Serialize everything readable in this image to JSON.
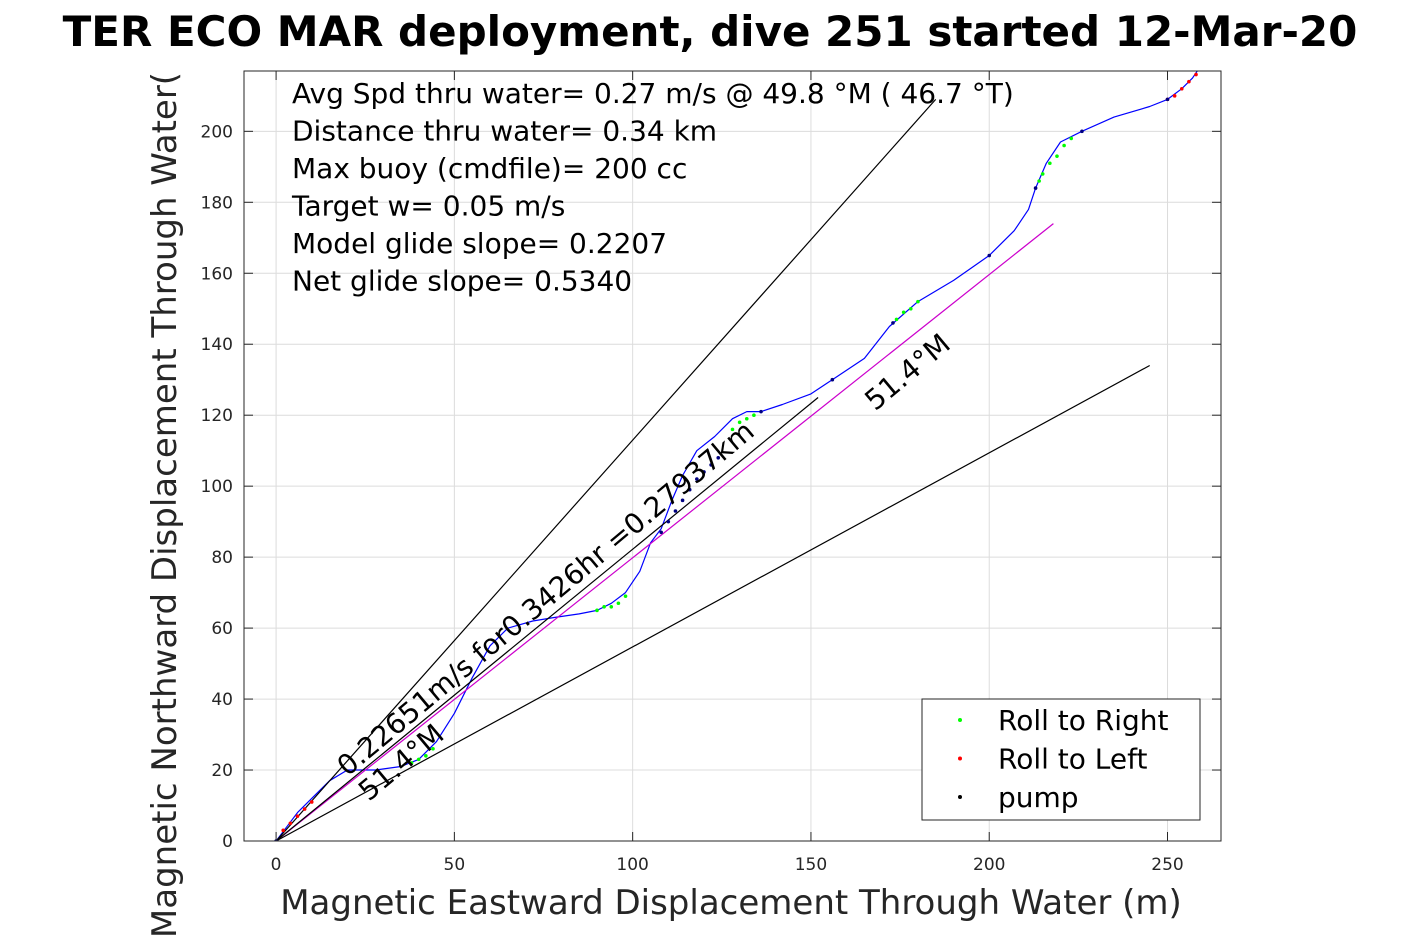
{
  "chart_data": {
    "type": "line",
    "title": "TER ECO MAR deployment, dive 251 started 12-Mar-20",
    "xlabel": "Magnetic Eastward Displacement Through Water (m)",
    "ylabel": "Magnetic Northward Displacement Through Water(",
    "xlim": [
      -9,
      265
    ],
    "ylim": [
      0,
      217
    ],
    "xticks": [
      0,
      50,
      100,
      150,
      200,
      250
    ],
    "yticks": [
      0,
      20,
      40,
      60,
      80,
      100,
      120,
      140,
      160,
      180,
      200
    ],
    "grid": true,
    "legend": {
      "placement": "bottom-right",
      "entries": [
        {
          "label": "Roll to Right",
          "color": "#00ff00"
        },
        {
          "label": "Roll to Left",
          "color": "#ff0000"
        },
        {
          "label": "pump",
          "color": "#000000"
        }
      ]
    },
    "info_lines": [
      "Avg Spd thru water=  0.27 m/s @  49.8 °M ( 46.7 °T)",
      "Distance thru water=  0.34 km",
      "Max buoy (cmdfile)= 200 cc",
      "Target w= 0.05 m/s",
      "Model glide slope= 0.2207",
      "Net glide slope= 0.5340"
    ],
    "annotations": [
      {
        "text": "0.22651m/s for0.3426hr =0.27937km",
        "x": 20,
        "y": 18,
        "angle_deg": -40
      },
      {
        "text": "51.4°M",
        "x": 26,
        "y": 11,
        "angle_deg": -40
      },
      {
        "text": "51.4°M",
        "x": 168,
        "y": 121,
        "angle_deg": -40
      }
    ],
    "series": [
      {
        "name": "track",
        "color": "#0000ff",
        "x": [
          0,
          3,
          6,
          10,
          15,
          20,
          28,
          35,
          40,
          45,
          50,
          55,
          60,
          65,
          72,
          78,
          85,
          90,
          94,
          98,
          102,
          105,
          108,
          111,
          114,
          118,
          123,
          128,
          132,
          136,
          142,
          150,
          156,
          165,
          172,
          180,
          190,
          200,
          207,
          211,
          213,
          216,
          220,
          226,
          235,
          245,
          250,
          254,
          257,
          259
        ],
        "y": [
          0,
          4,
          8,
          12,
          17,
          20,
          20,
          21,
          23,
          28,
          36,
          46,
          55,
          60,
          62,
          63,
          64,
          65,
          67,
          70,
          76,
          84,
          88,
          96,
          103,
          110,
          114,
          119,
          121,
          121,
          123,
          126,
          130,
          136,
          145,
          152,
          158,
          165,
          172,
          178,
          184,
          191,
          197,
          200,
          204,
          207,
          209,
          212,
          215,
          218
        ]
      },
      {
        "name": "glide",
        "color": "#cc00cc",
        "x": [
          0,
          218
        ],
        "y": [
          0,
          174
        ]
      },
      {
        "name": "fan-upper",
        "color": "#000000",
        "x": [
          0,
          185
        ],
        "y": [
          0,
          209
        ]
      },
      {
        "name": "fan-lower",
        "color": "#000000",
        "x": [
          0,
          245
        ],
        "y": [
          0,
          134
        ]
      },
      {
        "name": "fan-mid",
        "color": "#000000",
        "x": [
          0,
          152
        ],
        "y": [
          0,
          125
        ]
      }
    ],
    "markers": {
      "roll_right": {
        "color": "#00ff00",
        "x": [
          38,
          40,
          42,
          44,
          90,
          92,
          94,
          96,
          98,
          128,
          130,
          132,
          134,
          174,
          176,
          178,
          180,
          214,
          215,
          217,
          219,
          221,
          223
        ],
        "y": [
          22,
          23,
          24,
          26,
          65,
          66,
          66,
          67,
          69,
          116,
          118,
          119,
          120,
          147,
          149,
          150,
          152,
          186,
          188,
          191,
          193,
          196,
          198
        ]
      },
      "roll_left": {
        "color": "#ff0000",
        "x": [
          2,
          4,
          6,
          8,
          10,
          250,
          252,
          254,
          256,
          258
        ],
        "y": [
          3,
          5,
          7,
          9,
          11,
          209,
          210,
          212,
          214,
          216
        ]
      },
      "pump": {
        "color": "#000080",
        "x": [
          0,
          108,
          110,
          112,
          114,
          116,
          118,
          120,
          122,
          124,
          136,
          156,
          173,
          200,
          213,
          226,
          250
        ],
        "y": [
          0,
          87,
          90,
          93,
          96,
          99,
          102,
          104,
          106,
          108,
          121,
          130,
          146,
          165,
          184,
          200,
          209
        ]
      }
    }
  }
}
